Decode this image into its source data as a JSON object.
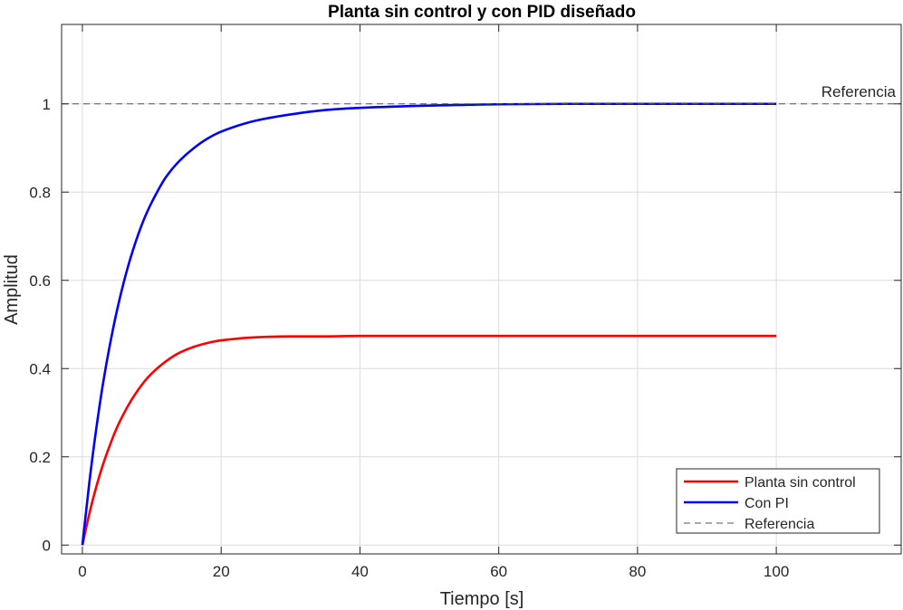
{
  "chart_data": {
    "type": "line",
    "title": "Planta sin control y con PID diseñado",
    "xlabel": "Tiempo [s]",
    "ylabel": "Amplitud",
    "xlim": [
      -3,
      118
    ],
    "ylim": [
      -0.02,
      1.18
    ],
    "xticks": [
      0,
      20,
      40,
      60,
      80,
      100
    ],
    "yticks": [
      0,
      0.2,
      0.4,
      0.6,
      0.8,
      1
    ],
    "xtick_labels": [
      "0",
      "20",
      "40",
      "60",
      "80",
      "100"
    ],
    "ytick_labels": [
      "0",
      "0.2",
      "0.4",
      "0.6",
      "0.8",
      "1"
    ],
    "grid": true,
    "legend_position": "bottom-right",
    "x": [
      0,
      1,
      2,
      3,
      4,
      5,
      6,
      7,
      8,
      9,
      10,
      12,
      14,
      16,
      18,
      20,
      25,
      30,
      35,
      40,
      50,
      60,
      70,
      80,
      90,
      100
    ],
    "series": [
      {
        "name": "Planta sin control",
        "color": "#ff0000",
        "style": "solid",
        "values": [
          0,
          0.071,
          0.132,
          0.184,
          0.228,
          0.267,
          0.299,
          0.327,
          0.351,
          0.372,
          0.389,
          0.416,
          0.436,
          0.449,
          0.458,
          0.464,
          0.471,
          0.473,
          0.473,
          0.474,
          0.474,
          0.474,
          0.474,
          0.474,
          0.474,
          0.474
        ]
      },
      {
        "name": "Con PI",
        "color": "#0000ff",
        "style": "solid",
        "values": [
          0,
          0.142,
          0.264,
          0.369,
          0.457,
          0.533,
          0.598,
          0.654,
          0.702,
          0.743,
          0.777,
          0.833,
          0.871,
          0.899,
          0.921,
          0.937,
          0.962,
          0.976,
          0.986,
          0.991,
          0.996,
          0.999,
          1.0,
          1.0,
          1.0,
          1.0
        ]
      },
      {
        "name": "Referencia",
        "color": "#555555",
        "style": "dashed",
        "constant": 1
      }
    ],
    "annotations": [
      {
        "text": "Referencia",
        "x": 118,
        "y": 1
      }
    ]
  }
}
